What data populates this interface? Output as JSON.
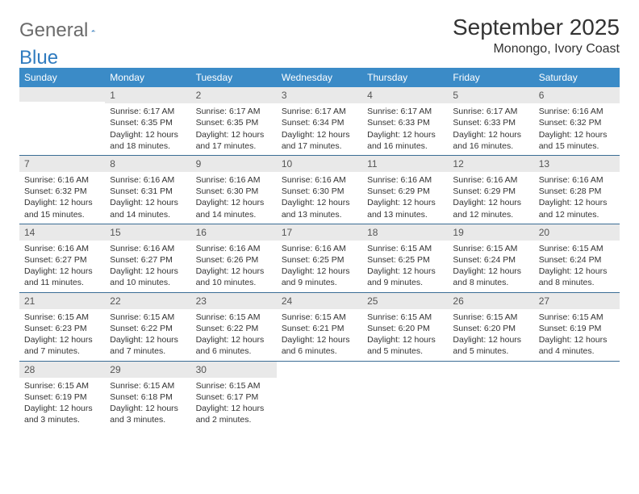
{
  "logo": {
    "general": "General",
    "blue": "Blue"
  },
  "title": "September 2025",
  "location": "Monongo, Ivory Coast",
  "header_bg": "#3b8bc7",
  "day_names": [
    "Sunday",
    "Monday",
    "Tuesday",
    "Wednesday",
    "Thursday",
    "Friday",
    "Saturday"
  ],
  "weeks": [
    [
      null,
      {
        "n": "1",
        "sr": "6:17 AM",
        "ss": "6:35 PM",
        "dl": "12 hours and 18 minutes."
      },
      {
        "n": "2",
        "sr": "6:17 AM",
        "ss": "6:35 PM",
        "dl": "12 hours and 17 minutes."
      },
      {
        "n": "3",
        "sr": "6:17 AM",
        "ss": "6:34 PM",
        "dl": "12 hours and 17 minutes."
      },
      {
        "n": "4",
        "sr": "6:17 AM",
        "ss": "6:33 PM",
        "dl": "12 hours and 16 minutes."
      },
      {
        "n": "5",
        "sr": "6:17 AM",
        "ss": "6:33 PM",
        "dl": "12 hours and 16 minutes."
      },
      {
        "n": "6",
        "sr": "6:16 AM",
        "ss": "6:32 PM",
        "dl": "12 hours and 15 minutes."
      }
    ],
    [
      {
        "n": "7",
        "sr": "6:16 AM",
        "ss": "6:32 PM",
        "dl": "12 hours and 15 minutes."
      },
      {
        "n": "8",
        "sr": "6:16 AM",
        "ss": "6:31 PM",
        "dl": "12 hours and 14 minutes."
      },
      {
        "n": "9",
        "sr": "6:16 AM",
        "ss": "6:30 PM",
        "dl": "12 hours and 14 minutes."
      },
      {
        "n": "10",
        "sr": "6:16 AM",
        "ss": "6:30 PM",
        "dl": "12 hours and 13 minutes."
      },
      {
        "n": "11",
        "sr": "6:16 AM",
        "ss": "6:29 PM",
        "dl": "12 hours and 13 minutes."
      },
      {
        "n": "12",
        "sr": "6:16 AM",
        "ss": "6:29 PM",
        "dl": "12 hours and 12 minutes."
      },
      {
        "n": "13",
        "sr": "6:16 AM",
        "ss": "6:28 PM",
        "dl": "12 hours and 12 minutes."
      }
    ],
    [
      {
        "n": "14",
        "sr": "6:16 AM",
        "ss": "6:27 PM",
        "dl": "12 hours and 11 minutes."
      },
      {
        "n": "15",
        "sr": "6:16 AM",
        "ss": "6:27 PM",
        "dl": "12 hours and 10 minutes."
      },
      {
        "n": "16",
        "sr": "6:16 AM",
        "ss": "6:26 PM",
        "dl": "12 hours and 10 minutes."
      },
      {
        "n": "17",
        "sr": "6:16 AM",
        "ss": "6:25 PM",
        "dl": "12 hours and 9 minutes."
      },
      {
        "n": "18",
        "sr": "6:15 AM",
        "ss": "6:25 PM",
        "dl": "12 hours and 9 minutes."
      },
      {
        "n": "19",
        "sr": "6:15 AM",
        "ss": "6:24 PM",
        "dl": "12 hours and 8 minutes."
      },
      {
        "n": "20",
        "sr": "6:15 AM",
        "ss": "6:24 PM",
        "dl": "12 hours and 8 minutes."
      }
    ],
    [
      {
        "n": "21",
        "sr": "6:15 AM",
        "ss": "6:23 PM",
        "dl": "12 hours and 7 minutes."
      },
      {
        "n": "22",
        "sr": "6:15 AM",
        "ss": "6:22 PM",
        "dl": "12 hours and 7 minutes."
      },
      {
        "n": "23",
        "sr": "6:15 AM",
        "ss": "6:22 PM",
        "dl": "12 hours and 6 minutes."
      },
      {
        "n": "24",
        "sr": "6:15 AM",
        "ss": "6:21 PM",
        "dl": "12 hours and 6 minutes."
      },
      {
        "n": "25",
        "sr": "6:15 AM",
        "ss": "6:20 PM",
        "dl": "12 hours and 5 minutes."
      },
      {
        "n": "26",
        "sr": "6:15 AM",
        "ss": "6:20 PM",
        "dl": "12 hours and 5 minutes."
      },
      {
        "n": "27",
        "sr": "6:15 AM",
        "ss": "6:19 PM",
        "dl": "12 hours and 4 minutes."
      }
    ],
    [
      {
        "n": "28",
        "sr": "6:15 AM",
        "ss": "6:19 PM",
        "dl": "12 hours and 3 minutes."
      },
      {
        "n": "29",
        "sr": "6:15 AM",
        "ss": "6:18 PM",
        "dl": "12 hours and 3 minutes."
      },
      {
        "n": "30",
        "sr": "6:15 AM",
        "ss": "6:17 PM",
        "dl": "12 hours and 2 minutes."
      },
      null,
      null,
      null,
      null
    ]
  ],
  "labels": {
    "sunrise": "Sunrise:",
    "sunset": "Sunset:",
    "daylight": "Daylight:"
  }
}
